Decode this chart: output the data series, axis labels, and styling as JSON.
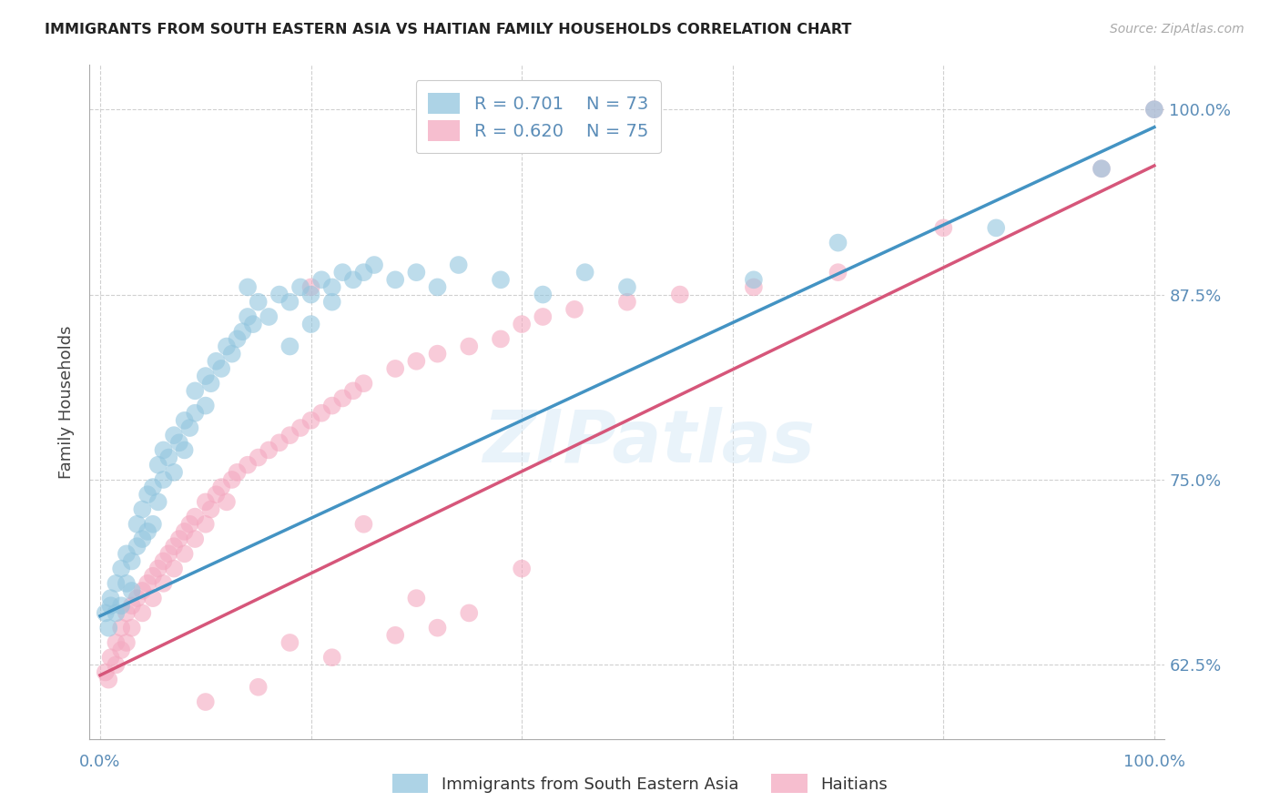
{
  "title": "IMMIGRANTS FROM SOUTH EASTERN ASIA VS HAITIAN FAMILY HOUSEHOLDS CORRELATION CHART",
  "source": "Source: ZipAtlas.com",
  "ylabel": "Family Households",
  "watermark": "ZIPatlas",
  "blue_R": "0.701",
  "blue_N": "73",
  "pink_R": "0.620",
  "pink_N": "75",
  "ytick_labels": [
    "62.5%",
    "75.0%",
    "87.5%",
    "100.0%"
  ],
  "ytick_values": [
    0.625,
    0.75,
    0.875,
    1.0
  ],
  "xlim": [
    -0.01,
    1.01
  ],
  "ylim": [
    0.575,
    1.03
  ],
  "blue_color": "#92c5de",
  "pink_color": "#f4a9c0",
  "blue_line_color": "#4393c3",
  "pink_line_color": "#d6567a",
  "title_color": "#222222",
  "tick_color": "#5b8db8",
  "grid_color": "#d0d0d0",
  "background_color": "#ffffff",
  "legend_label_blue": "Immigrants from South Eastern Asia",
  "legend_label_pink": "Haitians",
  "blue_scatter_x": [
    0.005,
    0.008,
    0.01,
    0.01,
    0.015,
    0.015,
    0.02,
    0.02,
    0.025,
    0.025,
    0.03,
    0.03,
    0.035,
    0.035,
    0.04,
    0.04,
    0.045,
    0.045,
    0.05,
    0.05,
    0.055,
    0.055,
    0.06,
    0.06,
    0.065,
    0.07,
    0.07,
    0.075,
    0.08,
    0.08,
    0.085,
    0.09,
    0.09,
    0.1,
    0.1,
    0.105,
    0.11,
    0.115,
    0.12,
    0.125,
    0.13,
    0.135,
    0.14,
    0.145,
    0.15,
    0.16,
    0.17,
    0.18,
    0.19,
    0.2,
    0.21,
    0.22,
    0.23,
    0.24,
    0.25,
    0.26,
    0.28,
    0.3,
    0.32,
    0.34,
    0.38,
    0.42,
    0.46,
    0.5,
    0.62,
    0.7,
    0.85,
    0.95,
    1.0,
    0.18,
    0.2,
    0.22,
    0.14
  ],
  "blue_scatter_y": [
    0.66,
    0.65,
    0.665,
    0.67,
    0.66,
    0.68,
    0.665,
    0.69,
    0.68,
    0.7,
    0.675,
    0.695,
    0.705,
    0.72,
    0.71,
    0.73,
    0.715,
    0.74,
    0.72,
    0.745,
    0.735,
    0.76,
    0.75,
    0.77,
    0.765,
    0.755,
    0.78,
    0.775,
    0.79,
    0.77,
    0.785,
    0.795,
    0.81,
    0.8,
    0.82,
    0.815,
    0.83,
    0.825,
    0.84,
    0.835,
    0.845,
    0.85,
    0.86,
    0.855,
    0.87,
    0.86,
    0.875,
    0.87,
    0.88,
    0.875,
    0.885,
    0.88,
    0.89,
    0.885,
    0.89,
    0.895,
    0.885,
    0.89,
    0.88,
    0.895,
    0.885,
    0.875,
    0.89,
    0.88,
    0.885,
    0.91,
    0.92,
    0.96,
    1.0,
    0.84,
    0.855,
    0.87,
    0.88
  ],
  "pink_scatter_x": [
    0.005,
    0.008,
    0.01,
    0.015,
    0.015,
    0.02,
    0.02,
    0.025,
    0.025,
    0.03,
    0.03,
    0.035,
    0.04,
    0.04,
    0.045,
    0.05,
    0.05,
    0.055,
    0.06,
    0.06,
    0.065,
    0.07,
    0.07,
    0.075,
    0.08,
    0.08,
    0.085,
    0.09,
    0.09,
    0.1,
    0.1,
    0.105,
    0.11,
    0.115,
    0.12,
    0.125,
    0.13,
    0.14,
    0.15,
    0.16,
    0.17,
    0.18,
    0.19,
    0.2,
    0.21,
    0.22,
    0.23,
    0.24,
    0.25,
    0.28,
    0.3,
    0.32,
    0.35,
    0.38,
    0.4,
    0.42,
    0.45,
    0.5,
    0.55,
    0.62,
    0.7,
    0.8,
    0.95,
    1.0,
    0.18,
    0.22,
    0.28,
    0.32,
    0.2,
    0.25,
    0.35,
    0.4,
    0.3,
    0.15,
    0.1
  ],
  "pink_scatter_y": [
    0.62,
    0.615,
    0.63,
    0.625,
    0.64,
    0.635,
    0.65,
    0.64,
    0.66,
    0.65,
    0.665,
    0.67,
    0.66,
    0.675,
    0.68,
    0.67,
    0.685,
    0.69,
    0.68,
    0.695,
    0.7,
    0.69,
    0.705,
    0.71,
    0.7,
    0.715,
    0.72,
    0.71,
    0.725,
    0.72,
    0.735,
    0.73,
    0.74,
    0.745,
    0.735,
    0.75,
    0.755,
    0.76,
    0.765,
    0.77,
    0.775,
    0.78,
    0.785,
    0.79,
    0.795,
    0.8,
    0.805,
    0.81,
    0.815,
    0.825,
    0.83,
    0.835,
    0.84,
    0.845,
    0.855,
    0.86,
    0.865,
    0.87,
    0.875,
    0.88,
    0.89,
    0.92,
    0.96,
    1.0,
    0.64,
    0.63,
    0.645,
    0.65,
    0.88,
    0.72,
    0.66,
    0.69,
    0.67,
    0.61,
    0.6
  ],
  "blue_line_y_start": 0.658,
  "blue_line_y_end": 0.988,
  "pink_line_y_start": 0.618,
  "pink_line_y_end": 0.962
}
